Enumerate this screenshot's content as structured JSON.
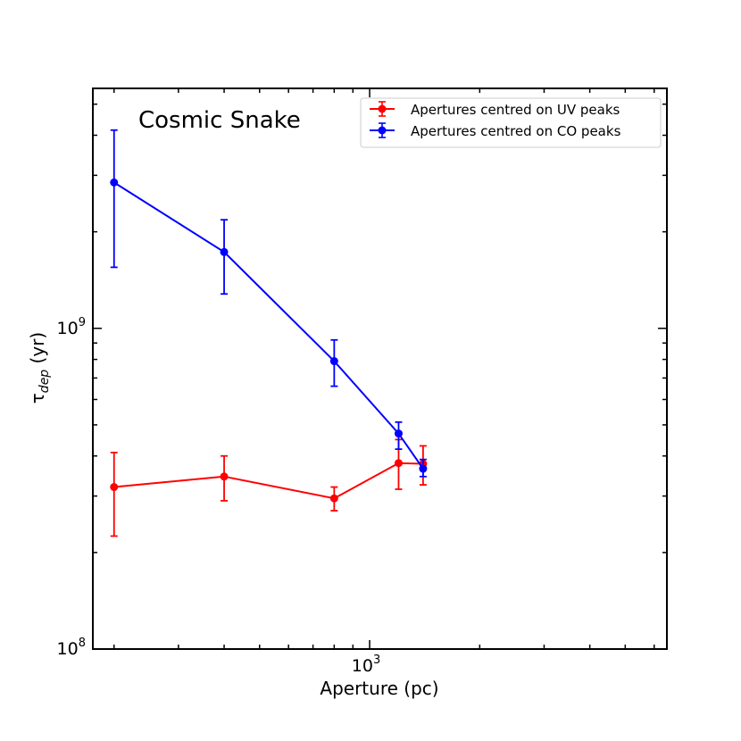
{
  "chart_data": {
    "type": "line",
    "xlabel": "Aperture (pc)",
    "ylabel": "τ",
    "ylabel_sub": "dep",
    "ylabel_unit": " (yr)",
    "xscale": "log",
    "yscale": "log",
    "xlim": [
      175,
      6500
    ],
    "ylim": [
      100000000,
      5600000000
    ],
    "x_tick_labels": [
      {
        "value": 1000,
        "base": "10",
        "exp": "3"
      }
    ],
    "y_tick_labels": [
      {
        "value": 100000000,
        "base": "10",
        "exp": "8"
      },
      {
        "value": 1000000000,
        "base": "10",
        "exp": "9"
      }
    ],
    "annotation": "Cosmic Snake",
    "legend_position": "top-right",
    "series": [
      {
        "name": "Apertures centred on UV peaks",
        "color": "#ff0000",
        "points": [
          {
            "x": 200,
            "y": 320000000,
            "err_low": 225000000,
            "err_high": 410000000
          },
          {
            "x": 400,
            "y": 345000000,
            "err_low": 290000000,
            "err_high": 400000000
          },
          {
            "x": 800,
            "y": 295000000,
            "err_low": 270000000,
            "err_high": 320000000
          },
          {
            "x": 1200,
            "y": 380000000,
            "err_low": 315000000,
            "err_high": 450000000
          },
          {
            "x": 1400,
            "y": 378000000,
            "err_low": 325000000,
            "err_high": 430000000
          }
        ]
      },
      {
        "name": "Apertures centred on CO peaks",
        "color": "#0000ff",
        "points": [
          {
            "x": 200,
            "y": 2850000000,
            "err_low": 1550000000,
            "err_high": 4150000000
          },
          {
            "x": 400,
            "y": 1730000000,
            "err_low": 1280000000,
            "err_high": 2180000000
          },
          {
            "x": 800,
            "y": 790000000,
            "err_low": 660000000,
            "err_high": 920000000
          },
          {
            "x": 1200,
            "y": 470000000,
            "err_low": 420000000,
            "err_high": 510000000
          },
          {
            "x": 1400,
            "y": 365000000,
            "err_low": 345000000,
            "err_high": 390000000
          }
        ]
      }
    ]
  }
}
